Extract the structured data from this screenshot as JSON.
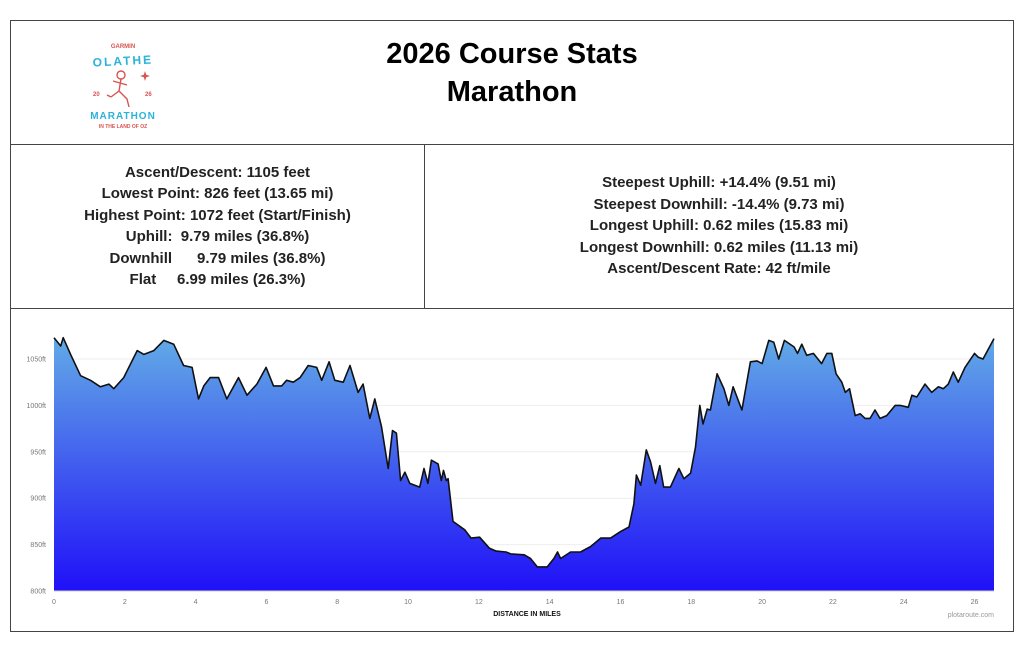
{
  "header": {
    "title_line1": "2026 Course Stats",
    "title_line2": "Marathon",
    "logo": {
      "top": "GARMIN",
      "name": "OLATHE",
      "year_left": "20",
      "year_right": "26",
      "event": "MARATHON",
      "tagline": "IN THE LAND OF OZ"
    }
  },
  "stats_left": [
    "Ascent/Descent:  1105 feet",
    "Lowest Point:  826 feet (13.65 mi)",
    "Highest Point:  1072 feet (Start/Finish)",
    "Uphill:  9.79 miles (36.8%)",
    "Downhill      9.79 miles (36.8%)",
    "Flat     6.99 miles (26.3%)"
  ],
  "stats_right": [
    "Steepest Uphill:  +14.4% (9.51 mi)",
    "Steepest Downhill:  -14.4% (9.73 mi)",
    "Longest Uphill:  0.62 miles (15.83 mi)",
    "Longest Downhill:  0.62 miles (11.13 mi)",
    "Ascent/Descent Rate: 42 ft/mile"
  ],
  "chart_data": {
    "type": "area",
    "xlabel": "DISTANCE IN MILES",
    "ylabel": "",
    "credit": "plotaroute.com",
    "xlim": [
      0,
      26.55
    ],
    "ylim": [
      800,
      1075
    ],
    "xticks": [
      0,
      2,
      4,
      6,
      8,
      10,
      12,
      14,
      16,
      18,
      20,
      22,
      24,
      26
    ],
    "yticks": [
      800,
      850,
      900,
      950,
      1000,
      1050
    ],
    "ytick_labels": [
      "800ft",
      "850ft",
      "900ft",
      "950ft",
      "1000ft",
      "1050ft"
    ],
    "grid": true,
    "fill_top_color": "#62aae6",
    "fill_bottom_color": "#2010f8",
    "line_color": "#111111",
    "x": [
      0,
      0.19,
      0.26,
      0.47,
      0.75,
      1.03,
      1.31,
      1.55,
      1.69,
      1.97,
      2.35,
      2.54,
      2.82,
      3.1,
      3.38,
      3.66,
      3.9,
      4.08,
      4.23,
      4.41,
      4.65,
      4.88,
      5.21,
      5.45,
      5.73,
      5.99,
      6.2,
      6.43,
      6.57,
      6.76,
      6.95,
      7.18,
      7.42,
      7.56,
      7.77,
      7.93,
      8.17,
      8.36,
      8.59,
      8.73,
      8.92,
      9.06,
      9.25,
      9.44,
      9.56,
      9.67,
      9.79,
      9.91,
      10.05,
      10.33,
      10.45,
      10.56,
      10.66,
      10.85,
      10.94,
      11.0,
      11.08,
      11.13,
      11.27,
      11.6,
      11.78,
      12.02,
      12.3,
      12.49,
      12.77,
      12.9,
      13.28,
      13.46,
      13.65,
      13.93,
      14.12,
      14.22,
      14.31,
      14.59,
      14.87,
      15.16,
      15.44,
      15.72,
      16.0,
      16.24,
      16.38,
      16.45,
      16.57,
      16.73,
      16.85,
      16.99,
      17.11,
      17.22,
      17.41,
      17.65,
      17.79,
      17.98,
      18.12,
      18.24,
      18.33,
      18.45,
      18.54,
      18.73,
      18.92,
      19.06,
      19.18,
      19.43,
      19.67,
      19.86,
      20.0,
      20.19,
      20.33,
      20.47,
      20.63,
      20.9,
      21.0,
      21.12,
      21.26,
      21.45,
      21.68,
      21.83,
      21.97,
      22.09,
      22.25,
      22.35,
      22.47,
      22.63,
      22.77,
      22.91,
      23.05,
      23.19,
      23.33,
      23.52,
      23.76,
      23.9,
      24.13,
      24.23,
      24.37,
      24.6,
      24.79,
      24.98,
      25.12,
      25.26,
      25.4,
      25.54,
      25.73,
      26.0,
      26.1,
      26.24,
      26.55
    ],
    "y": [
      1073,
      1064,
      1073,
      1055,
      1032,
      1027,
      1020,
      1023,
      1018,
      1030,
      1059,
      1055,
      1059,
      1070,
      1066,
      1043,
      1041,
      1007,
      1021,
      1030,
      1030,
      1007,
      1030,
      1011,
      1023,
      1041,
      1021,
      1021,
      1027,
      1025,
      1030,
      1043,
      1041,
      1027,
      1047,
      1027,
      1025,
      1043,
      1014,
      1023,
      986,
      1007,
      977,
      932,
      973,
      970,
      919,
      928,
      916,
      912,
      932,
      916,
      941,
      937,
      919,
      930,
      919,
      921,
      875,
      866,
      857,
      858,
      846,
      843,
      842,
      840,
      839,
      835,
      826,
      826,
      835,
      842,
      835,
      842,
      842,
      848,
      857,
      857,
      864,
      869,
      894,
      925,
      914,
      952,
      939,
      916,
      935,
      912,
      912,
      932,
      921,
      927,
      955,
      1000,
      980,
      996,
      995,
      1034,
      1018,
      1000,
      1020,
      995,
      1047,
      1048,
      1045,
      1070,
      1068,
      1050,
      1070,
      1063,
      1056,
      1066,
      1054,
      1056,
      1045,
      1056,
      1056,
      1034,
      1025,
      1014,
      1018,
      989,
      991,
      986,
      986,
      995,
      986,
      989,
      1000,
      1000,
      998,
      1011,
      1009,
      1023,
      1014,
      1020,
      1018,
      1023,
      1036,
      1025,
      1041,
      1056,
      1052,
      1050,
      1072
    ]
  }
}
